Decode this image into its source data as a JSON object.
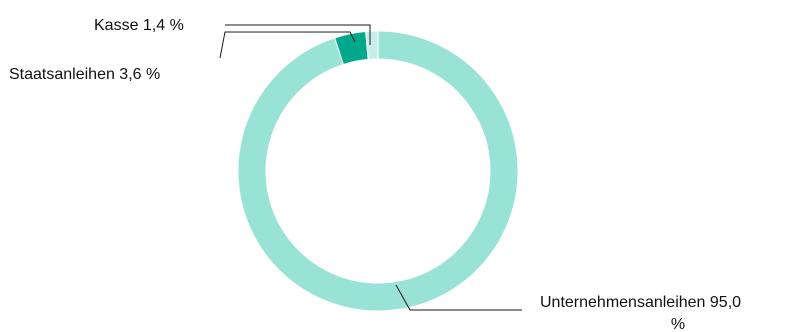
{
  "chart_data": {
    "type": "pie",
    "variant": "donut",
    "title": "",
    "categories": [
      "Unternehmensanleihen",
      "Staatsanleihen",
      "Kasse"
    ],
    "values": [
      95.0,
      3.6,
      1.4
    ],
    "labels": [
      {
        "line1": "Unternehmensanleihen 95,0",
        "line2": "%"
      },
      {
        "line1": "Staatsanleihen 3,6 %"
      },
      {
        "line1": "Kasse 1,4 %"
      }
    ],
    "colors": [
      "#98e3d5",
      "#00a88c",
      "#c7eee8"
    ],
    "start_angle_deg": 0,
    "direction": "clockwise",
    "legend": "none"
  }
}
